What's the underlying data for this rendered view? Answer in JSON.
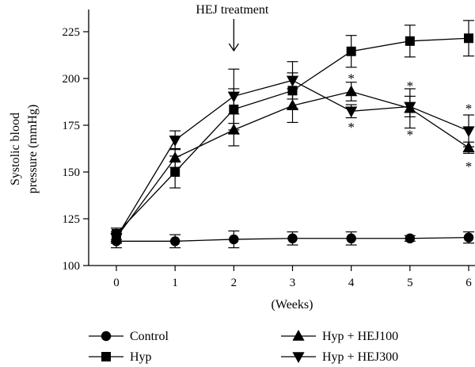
{
  "chart_data": {
    "type": "line",
    "ylabel_lines": [
      "Systolic blood",
      "pressure (mmHg)"
    ],
    "xlabel": "(Weeks)",
    "x": [
      0,
      1,
      2,
      3,
      4,
      5,
      6
    ],
    "xlim": [
      -0.6,
      6.1
    ],
    "ylim": [
      100,
      237
    ],
    "yticks": [
      100,
      125,
      150,
      175,
      200,
      225
    ],
    "grid": false,
    "legend_position": "bottom",
    "annotation": {
      "text": "HEJ treatment",
      "x": 2
    },
    "series": [
      {
        "name": "Control",
        "marker": "circle",
        "values": [
          113,
          113,
          114,
          114.5,
          114.5,
          114.5,
          115
        ],
        "errors": [
          3.5,
          3.5,
          4.5,
          3.5,
          3.5,
          1.5,
          3
        ]
      },
      {
        "name": "Hyp",
        "marker": "square",
        "values": [
          117,
          150,
          183.5,
          193.5,
          214.5,
          220,
          221.5
        ],
        "errors": [
          3,
          8.5,
          11,
          9.5,
          8.5,
          8.5,
          9.5
        ]
      },
      {
        "name": "Hyp + HEJ100",
        "marker": "triangle-up",
        "values": [
          115,
          157.5,
          172.5,
          185.5,
          193,
          184,
          163
        ],
        "errors": [
          3,
          5,
          8.5,
          9,
          5,
          10.5,
          3
        ]
      },
      {
        "name": "Hyp + HEJ300",
        "marker": "triangle-down",
        "values": [
          115,
          167,
          190.5,
          199,
          182.5,
          185,
          172
        ],
        "errors": [
          3,
          5,
          14.5,
          10,
          3.5,
          5.5,
          8.5
        ]
      }
    ],
    "significance": [
      {
        "label": "*",
        "x": 4,
        "y": 201
      },
      {
        "label": "*",
        "x": 4,
        "y": 175
      },
      {
        "label": "*",
        "x": 5,
        "y": 197
      },
      {
        "label": "*",
        "x": 5,
        "y": 171
      },
      {
        "label": "*",
        "x": 6,
        "y": 185
      },
      {
        "label": "*",
        "x": 6,
        "y": 154
      }
    ]
  }
}
